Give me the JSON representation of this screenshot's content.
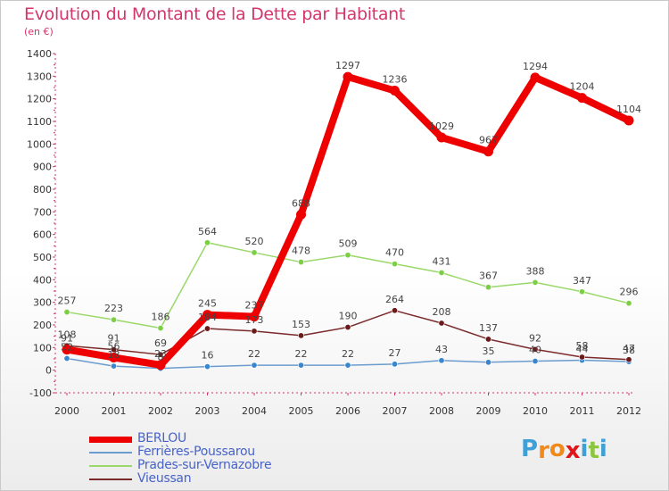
{
  "title": "Evolution du Montant de la Dette par Habitant",
  "subtitle": "(en €)",
  "brand": {
    "letters": [
      "P",
      "r",
      "o",
      "x",
      "i",
      "t",
      "i"
    ],
    "colors": [
      "#3fa0d8",
      "#f08a1d",
      "#f08a1d",
      "#e0161b",
      "#3fa0d8",
      "#8cc63f",
      "#3fa0d8"
    ]
  },
  "chart_data": {
    "type": "line",
    "x": [
      "2000",
      "2001",
      "2002",
      "2003",
      "2004",
      "2005",
      "2006",
      "2007",
      "2008",
      "2009",
      "2010",
      "2011",
      "2012"
    ],
    "ylim": [
      -100,
      1400
    ],
    "yticks": [
      "-100",
      "0",
      "100",
      "200",
      "300",
      "400",
      "500",
      "600",
      "700",
      "800",
      "900",
      "1000",
      "1100",
      "1200",
      "1300",
      "1400"
    ],
    "grid": false,
    "legend_position": "bottom-left",
    "series": [
      {
        "name": "BERLOU",
        "color": "#ee0000",
        "values": [
          91,
          56,
          23,
          245,
          237,
          688,
          1297,
          1236,
          1029,
          967,
          1294,
          1204,
          1104
        ],
        "labels": [
          "91",
          "56",
          "23",
          "245",
          "237",
          "688",
          "1297",
          "1236",
          "1029",
          "967",
          "1294",
          "1204",
          "1104"
        ]
      },
      {
        "name": "Ferrières-Poussarou",
        "color": "#6b9ccf",
        "marker": "#3a86cc",
        "values": [
          52,
          18,
          8,
          16,
          22,
          22,
          22,
          27,
          43,
          35,
          40,
          44,
          38
        ],
        "labels": [
          "52",
          "18",
          "8",
          "16",
          "22",
          "22",
          "22",
          "27",
          "43",
          "35",
          "40",
          "44",
          "38"
        ]
      },
      {
        "name": "Prades-sur-Vernazobre",
        "color": "#9ad86a",
        "marker": "#7ccf45",
        "values": [
          257,
          223,
          186,
          564,
          520,
          478,
          509,
          470,
          431,
          367,
          388,
          347,
          296
        ],
        "labels": [
          "257",
          "223",
          "186",
          "564",
          "520",
          "478",
          "509",
          "470",
          "431",
          "367",
          "388",
          "347",
          "296"
        ]
      },
      {
        "name": "Vieussan",
        "color": "#7a2a2a",
        "marker": "#6a1a1a",
        "values": [
          108,
          91,
          69,
          184,
          173,
          153,
          190,
          264,
          208,
          137,
          92,
          58,
          47
        ],
        "labels": [
          "108",
          "91",
          "69",
          "184",
          "173",
          "153",
          "190",
          "264",
          "208",
          "137",
          "92",
          "58",
          "47"
        ]
      }
    ]
  }
}
